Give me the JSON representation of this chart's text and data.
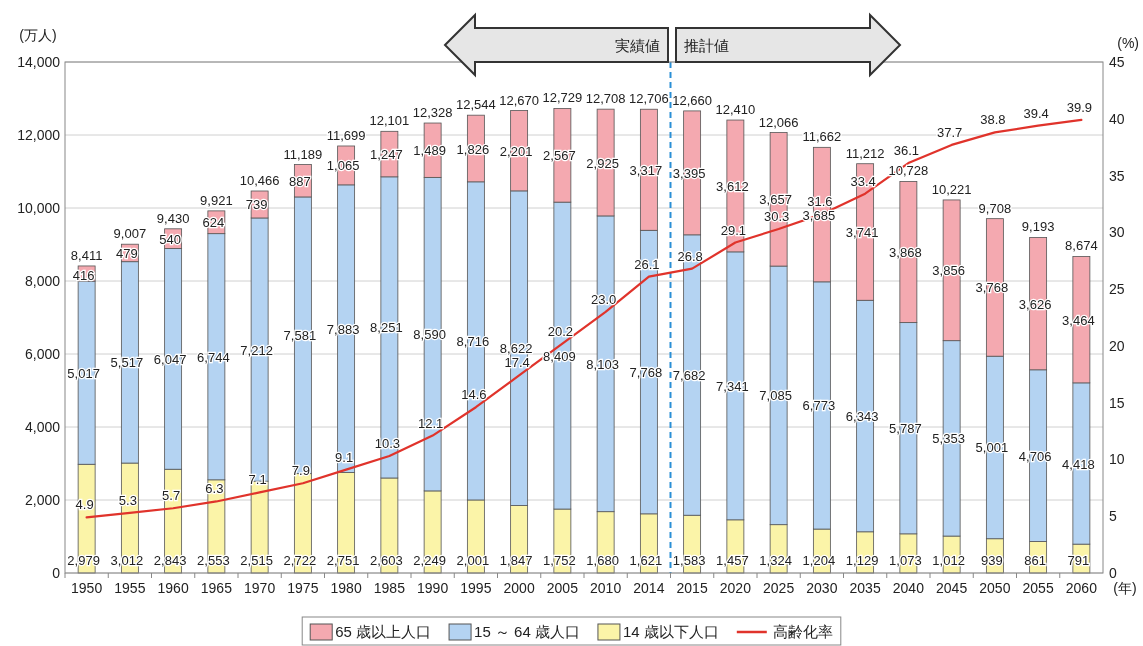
{
  "chart_data": {
    "type": "bar",
    "stacked": true,
    "categories": [
      "1950",
      "1955",
      "1960",
      "1965",
      "1970",
      "1975",
      "1980",
      "1985",
      "1990",
      "1995",
      "2000",
      "2005",
      "2010",
      "2014",
      "2015",
      "2020",
      "2025",
      "2030",
      "2035",
      "2040",
      "2045",
      "2050",
      "2055",
      "2060"
    ],
    "xlabel": "(年)",
    "ylabel": "(万人)",
    "y2label": "(%)",
    "ylim": [
      0,
      14000
    ],
    "yticks": [
      0,
      {
        "value": 2000,
        "label": "2,000"
      },
      {
        "value": 4000,
        "label": "4,000"
      },
      {
        "value": 6000,
        "label": "6,000"
      },
      {
        "value": 8000,
        "label": "8,000"
      },
      {
        "value": 10000,
        "label": "10,000"
      },
      {
        "value": 12000,
        "label": "12,000"
      },
      {
        "value": 14000,
        "label": "14,000"
      }
    ],
    "y2lim": [
      0,
      45
    ],
    "y2ticks": [
      0,
      5,
      10,
      15,
      20,
      25,
      30,
      35,
      40,
      45
    ],
    "grid": "y",
    "legend": "bottom",
    "annotations": [
      "実績値",
      "推計値"
    ],
    "ref_lines": [
      {
        "axis": "x",
        "value": "2014",
        "color": "#2a8fd6",
        "line_style": "dashed"
      }
    ],
    "totals": [
      "8,411",
      "9,007",
      "9,430",
      "9,921",
      "10,466",
      "11,189",
      "11,699",
      "12,101",
      "12,328",
      "12,544",
      "12,670",
      "12,729",
      "12,708",
      "12,706",
      "12,660",
      "12,410",
      "12,066",
      "11,662",
      "11,212",
      "10,728",
      "10,221",
      "9,708",
      "9,193",
      "8,674"
    ],
    "series": [
      {
        "name": "14 歳以下人口",
        "color": "#fbf4a8",
        "values": [
          2979,
          3012,
          2843,
          2553,
          2515,
          2722,
          2751,
          2603,
          2249,
          2001,
          1847,
          1752,
          1680,
          1621,
          1583,
          1457,
          1324,
          1204,
          1129,
          1073,
          1012,
          939,
          861,
          791
        ],
        "value_labels": [
          "2,979",
          "3,012",
          "2,843",
          "2,553",
          "2,515",
          "2,722",
          "2,751",
          "2,603",
          "2,249",
          "2,001",
          "1,847",
          "1,752",
          "1,680",
          "1,621",
          "1,583",
          "1,457",
          "1,324",
          "1,204",
          "1,129",
          "1,073",
          "1,012",
          "939",
          "861",
          "791"
        ]
      },
      {
        "name": "15 ～ 64 歳人口",
        "color": "#b4d3f2",
        "values": [
          5017,
          5517,
          6047,
          6744,
          7212,
          7581,
          7883,
          8251,
          8590,
          8716,
          8622,
          8409,
          8103,
          7768,
          7682,
          7341,
          7085,
          6773,
          6343,
          5787,
          5353,
          5001,
          4706,
          4418
        ],
        "value_labels": [
          "5,017",
          "5,517",
          "6,047",
          "6,744",
          "7,212",
          "7,581",
          "7,883",
          "8,251",
          "8,590",
          "8,716",
          "8,622",
          "8,409",
          "8,103",
          "7,768",
          "7,682",
          "7,341",
          "7,085",
          "6,773",
          "6,343",
          "5,787",
          "5,353",
          "5,001",
          "4,706",
          "4,418"
        ]
      },
      {
        "name": "65 歳以上人口",
        "color": "#f4a9b0",
        "values": [
          416,
          479,
          540,
          624,
          739,
          887,
          1065,
          1247,
          1489,
          1826,
          2201,
          2567,
          2925,
          3317,
          3395,
          3612,
          3657,
          3685,
          3741,
          3868,
          3856,
          3768,
          3626,
          3464
        ],
        "value_labels": [
          "416",
          "479",
          "540",
          "624",
          "739",
          "887",
          "1,065",
          "1,247",
          "1,489",
          "1,826",
          "2,201",
          "2,567",
          "2,925",
          "3,317",
          "3,395",
          "3,612",
          "3,657",
          "3,685",
          "3,741",
          "3,868",
          "3,856",
          "3,768",
          "3,626",
          "3,464"
        ]
      },
      {
        "name": "高齢化率",
        "type": "line",
        "axis": "y2",
        "color": "#e0332b",
        "values": [
          4.9,
          5.3,
          5.7,
          6.3,
          7.1,
          7.9,
          9.1,
          10.3,
          12.1,
          14.6,
          17.4,
          20.2,
          23.0,
          26.1,
          26.8,
          29.1,
          30.3,
          31.6,
          33.4,
          36.1,
          37.7,
          38.8,
          39.4,
          39.9
        ],
        "value_labels": [
          "4.9",
          "5.3",
          "5.7",
          "6.3",
          "7.1",
          "7.9",
          "9.1",
          "10.3",
          "12.1",
          "14.6",
          "17.4",
          "20.2",
          "23.0",
          "26.1",
          "26.8",
          "29.1",
          "30.3",
          "31.6",
          "33.4",
          "36.1",
          "37.7",
          "38.8",
          "39.4",
          "39.9"
        ]
      }
    ]
  }
}
